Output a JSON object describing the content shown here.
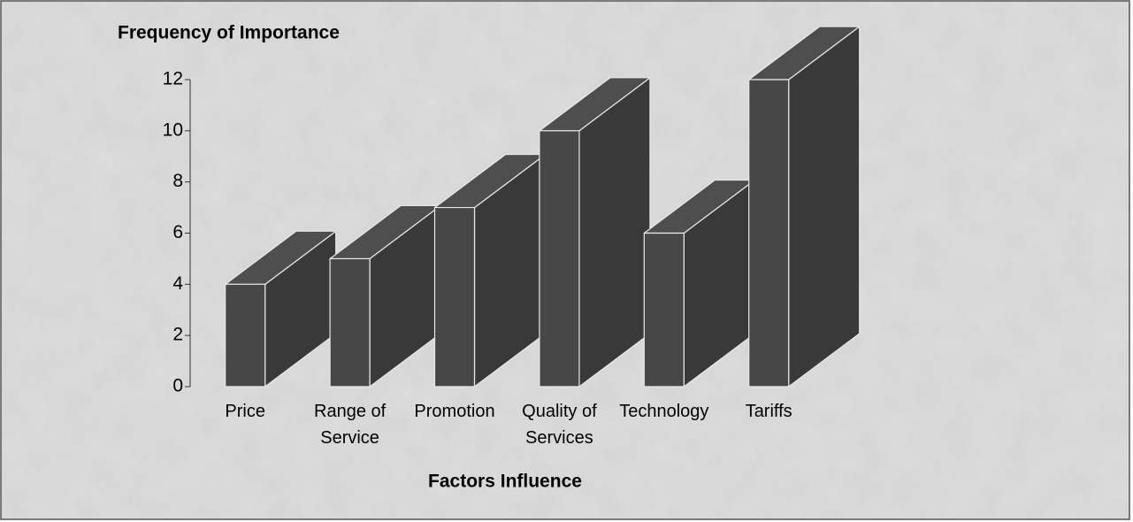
{
  "chart_data": {
    "type": "bar3d",
    "title": "Frequency of Importance",
    "xlabel": "Factors Influence",
    "categories": [
      "Price",
      "Range of Service",
      "Promotion",
      "Quality of Services",
      "Technology",
      "Tariffs"
    ],
    "values": [
      4,
      5,
      7,
      10,
      6,
      12
    ],
    "color": "#474747",
    "ylim": [
      0,
      12
    ],
    "yticks": [
      0,
      2,
      4,
      6,
      8,
      10,
      12
    ]
  }
}
